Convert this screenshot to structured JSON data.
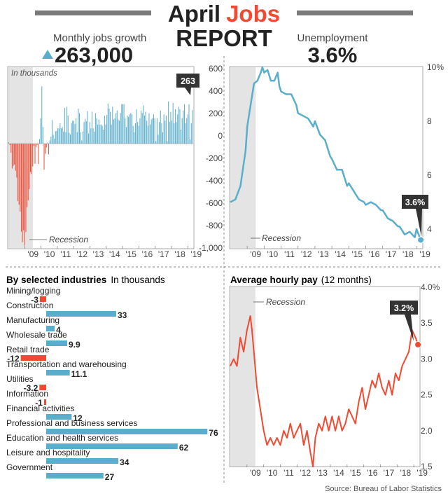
{
  "header": {
    "title_part1": "April",
    "title_part2": "Jobs",
    "title_line2": "REPORT",
    "jobs_label": "Monthly jobs growth",
    "jobs_value": "263,000",
    "unemployment_label": "Unemployment",
    "unemployment_value": "3.6%"
  },
  "colors": {
    "accent": "#f04a32",
    "blue": "#5aaecc",
    "dark": "#222222",
    "recession": "#e4e4e4",
    "frame": "#aaaaaa",
    "callout": "#333333"
  },
  "source": "Source: Bureau of Labor Statistics",
  "chart_data": [
    {
      "id": "jobs",
      "type": "bar",
      "title": "Monthly jobs growth",
      "unit_label": "In thousands",
      "recession_label": "Recession",
      "callout": "263",
      "x_range": [
        2008.0,
        2019.33
      ],
      "ylim": [
        -820,
        600
      ],
      "xticks": [
        "'09",
        "'10",
        "'11",
        "'12",
        "'13",
        "'14",
        "'15",
        "'16",
        "'17",
        "'18",
        "'19"
      ],
      "recession": [
        2008.0,
        2009.5
      ],
      "values": [
        12,
        -10,
        -72,
        -196,
        -175,
        -165,
        -213,
        -267,
        -452,
        -480,
        -533,
        -691,
        -775,
        -681,
        -800,
        -695,
        -500,
        -446,
        -357,
        -223,
        -238,
        -180,
        -18,
        -157,
        -28,
        -10,
        -160,
        35,
        200,
        450,
        130,
        -205,
        -80,
        -30,
        9,
        -85,
        25,
        55,
        185,
        70,
        40,
        98,
        100,
        120,
        120,
        160,
        120,
        130,
        95,
        280,
        90,
        290,
        220,
        85,
        72,
        160,
        180,
        180,
        155,
        200,
        90,
        275,
        240,
        90,
        25,
        95,
        170,
        195,
        175,
        255,
        80,
        170,
        120,
        250,
        120,
        95,
        240,
        200,
        150,
        190,
        150,
        150,
        140,
        110,
        220,
        150,
        225,
        315,
        275,
        250,
        150,
        290,
        190,
        200,
        240,
        260,
        190,
        180,
        240,
        310,
        310,
        310,
        200,
        130,
        220,
        210,
        230,
        240,
        230,
        140,
        90,
        160,
        270,
        170,
        140,
        200,
        260,
        240,
        300,
        220,
        250,
        180,
        140,
        240,
        150,
        190,
        200,
        230,
        200,
        20,
        200,
        70,
        170,
        260,
        160,
        90,
        230,
        180,
        220,
        20,
        330,
        170,
        250,
        180,
        320,
        160,
        270,
        170,
        230,
        290,
        270,
        110,
        200,
        260,
        310,
        160,
        200,
        230,
        310,
        33,
        160,
        263
      ]
    },
    {
      "id": "unemployment",
      "type": "line",
      "title": "Unemployment",
      "recession_label": "Recession",
      "callout": "3.6%",
      "x_range": [
        2008.0,
        2019.33
      ],
      "left_ticks": [
        "600",
        "400",
        "200",
        "0",
        "-200",
        "-400",
        "-600",
        "-800",
        "-1,000"
      ],
      "right_ticks": [
        "10%",
        "8",
        "6",
        "4"
      ],
      "right_tick_values": [
        10,
        8,
        6,
        4
      ],
      "ylim": [
        3.3,
        10.0
      ],
      "xticks": [
        "'09",
        "'10",
        "'11",
        "'12",
        "'13",
        "'14",
        "'15",
        "'16",
        "'17",
        "'18",
        "'19"
      ],
      "recession": [
        2008.0,
        2009.5
      ],
      "x": [
        2008.0,
        2008.3,
        2008.6,
        2008.9,
        2009.0,
        2009.2,
        2009.4,
        2009.6,
        2009.8,
        2009.9,
        2010.0,
        2010.2,
        2010.4,
        2010.6,
        2010.8,
        2010.9,
        2011.0,
        2011.3,
        2011.6,
        2011.9,
        2012.0,
        2012.3,
        2012.6,
        2012.9,
        2013.0,
        2013.3,
        2013.6,
        2013.9,
        2014.0,
        2014.3,
        2014.6,
        2014.9,
        2015.0,
        2015.3,
        2015.6,
        2015.9,
        2016.0,
        2016.3,
        2016.6,
        2016.9,
        2017.0,
        2017.3,
        2017.6,
        2017.9,
        2018.0,
        2018.3,
        2018.6,
        2018.9,
        2019.0,
        2019.25
      ],
      "values": [
        5.0,
        5.1,
        5.6,
        6.9,
        7.8,
        8.6,
        9.4,
        9.5,
        9.8,
        10.0,
        9.8,
        9.9,
        9.5,
        9.5,
        9.8,
        9.3,
        9.1,
        9.0,
        9.0,
        8.6,
        8.3,
        8.2,
        8.1,
        7.8,
        8.0,
        7.5,
        7.3,
        6.7,
        6.6,
        6.2,
        6.2,
        5.6,
        5.7,
        5.4,
        5.1,
        5.0,
        4.9,
        5.0,
        4.9,
        4.7,
        4.7,
        4.4,
        4.3,
        4.1,
        4.1,
        3.8,
        3.9,
        3.7,
        4.0,
        3.6
      ]
    },
    {
      "id": "industries",
      "type": "bar",
      "title": "By selected industries",
      "unit_label": "In thousands",
      "categories": [
        "Mining/logging",
        "Construction",
        "Manufacturing",
        "Wholesale trade",
        "Retail trade",
        "Transportation and warehousing",
        "Utilities",
        "Information",
        "Financial activities",
        "Professional and business services",
        "Education and health services",
        "Leisure and hospitality",
        "Government"
      ],
      "values": [
        -3,
        33,
        4,
        9.9,
        -12,
        11.1,
        -3.2,
        -1,
        12,
        76,
        62,
        34,
        27
      ],
      "value_labels": [
        "-3",
        "33",
        "4",
        "9.9",
        "-12",
        "11.1",
        "-3.2",
        "-1",
        "12",
        "76",
        "62",
        "34",
        "27"
      ]
    },
    {
      "id": "pay",
      "type": "line",
      "title": "Average hourly pay",
      "subtitle": "(12 months)",
      "recession_label": "Recession",
      "callout": "3.2%",
      "x_range": [
        2008.0,
        2019.33
      ],
      "ylim": [
        1.5,
        4.0
      ],
      "right_ticks": [
        "4.0%",
        "3.5",
        "3.0",
        "2.5",
        "2.0",
        "1.5"
      ],
      "right_tick_values": [
        4.0,
        3.5,
        3.0,
        2.5,
        2.0,
        1.5
      ],
      "xticks": [
        "'09",
        "'10",
        "'11",
        "'12",
        "'13",
        "'14",
        "'15",
        "'16",
        "'17",
        "'18",
        "'19"
      ],
      "recession": [
        2008.0,
        2009.5
      ],
      "x": [
        2008.0,
        2008.2,
        2008.4,
        2008.6,
        2008.8,
        2009.0,
        2009.2,
        2009.3,
        2009.45,
        2009.6,
        2009.8,
        2010.0,
        2010.2,
        2010.4,
        2010.6,
        2010.8,
        2011.0,
        2011.2,
        2011.4,
        2011.6,
        2011.8,
        2012.0,
        2012.2,
        2012.4,
        2012.6,
        2012.8,
        2012.95,
        2013.1,
        2013.3,
        2013.5,
        2013.7,
        2013.9,
        2014.1,
        2014.3,
        2014.5,
        2014.7,
        2014.9,
        2015.1,
        2015.3,
        2015.5,
        2015.7,
        2015.9,
        2016.1,
        2016.3,
        2016.5,
        2016.7,
        2016.9,
        2017.1,
        2017.3,
        2017.5,
        2017.7,
        2017.9,
        2018.1,
        2018.3,
        2018.5,
        2018.7,
        2018.9,
        2019.1,
        2019.25
      ],
      "values": [
        2.9,
        3.0,
        2.9,
        3.3,
        3.1,
        3.4,
        3.6,
        3.4,
        3.0,
        2.6,
        2.3,
        2.0,
        1.8,
        1.9,
        1.8,
        1.9,
        1.8,
        2.0,
        1.9,
        2.1,
        1.9,
        2.0,
        2.1,
        1.8,
        2.0,
        1.7,
        1.5,
        1.9,
        2.1,
        2.0,
        2.2,
        2.0,
        2.2,
        2.0,
        2.2,
        2.0,
        2.1,
        2.3,
        2.2,
        2.1,
        2.4,
        2.6,
        2.3,
        2.5,
        2.7,
        2.6,
        2.8,
        2.6,
        2.5,
        2.7,
        2.5,
        2.8,
        2.7,
        2.9,
        3.0,
        3.1,
        3.4,
        3.3,
        3.2
      ]
    }
  ]
}
